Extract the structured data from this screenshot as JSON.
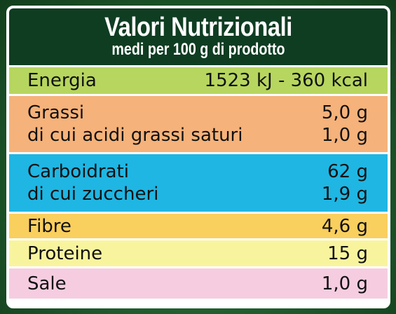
{
  "header": {
    "title": "Valori Nutrizionali",
    "subtitle": "medi per 100 g di prodotto"
  },
  "colors": {
    "header": "#0f3d22",
    "energy": "#b7d65f",
    "fat": "#f5b27a",
    "carbs": "#1fb6e3",
    "fibre": "#f9cf5e",
    "protein": "#f8f49e",
    "salt": "#f6cde0"
  },
  "rows": {
    "energy": {
      "label": "Energia",
      "value": "1523 kJ - 360 kcal"
    },
    "fat": {
      "label": "Grassi",
      "value": "5,0 g"
    },
    "saturated": {
      "label": "di cui acidi grassi saturi",
      "value": "1,0 g"
    },
    "carbs": {
      "label": "Carboidrati",
      "value": "62 g"
    },
    "sugars": {
      "label": "di cui zuccheri",
      "value": "1,9 g"
    },
    "fibre": {
      "label": "Fibre",
      "value": "4,6 g"
    },
    "protein": {
      "label": "Proteine",
      "value": "15 g"
    },
    "salt": {
      "label": "Sale",
      "value": "1,0 g"
    }
  }
}
